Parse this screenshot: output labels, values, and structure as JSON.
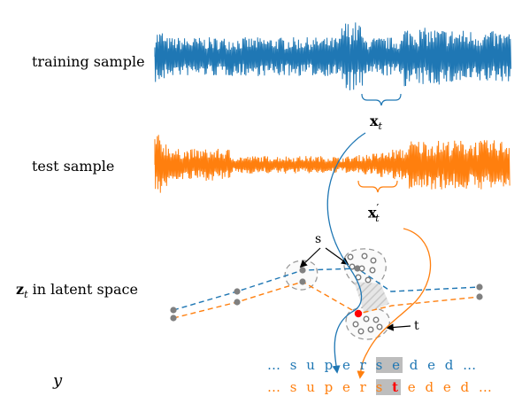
{
  "labels": {
    "training": "training sample",
    "test": "test sample",
    "latent_symbol": "z",
    "latent_sub": "t",
    "latent_text": "in latent space",
    "y": "y",
    "xt": "x",
    "xt_sub": "t",
    "xtp": "x",
    "xtp_sub": "t",
    "xtp_prime": "′",
    "s": "s",
    "t": "t"
  },
  "sequences": {
    "training": {
      "prefix": "… s u p e r ",
      "highlight": "s e",
      "suffix": " d e d …"
    },
    "test": {
      "prefix": "… s u p e r ",
      "highlight_a": "s ",
      "highlight_red": "t",
      "suffix": " e d e d …"
    }
  },
  "colors": {
    "training": "#1f77b4",
    "test": "#ff7f0e",
    "node": "#808080",
    "highlight": "#bdbdbd",
    "marker": "#ff0000"
  }
}
